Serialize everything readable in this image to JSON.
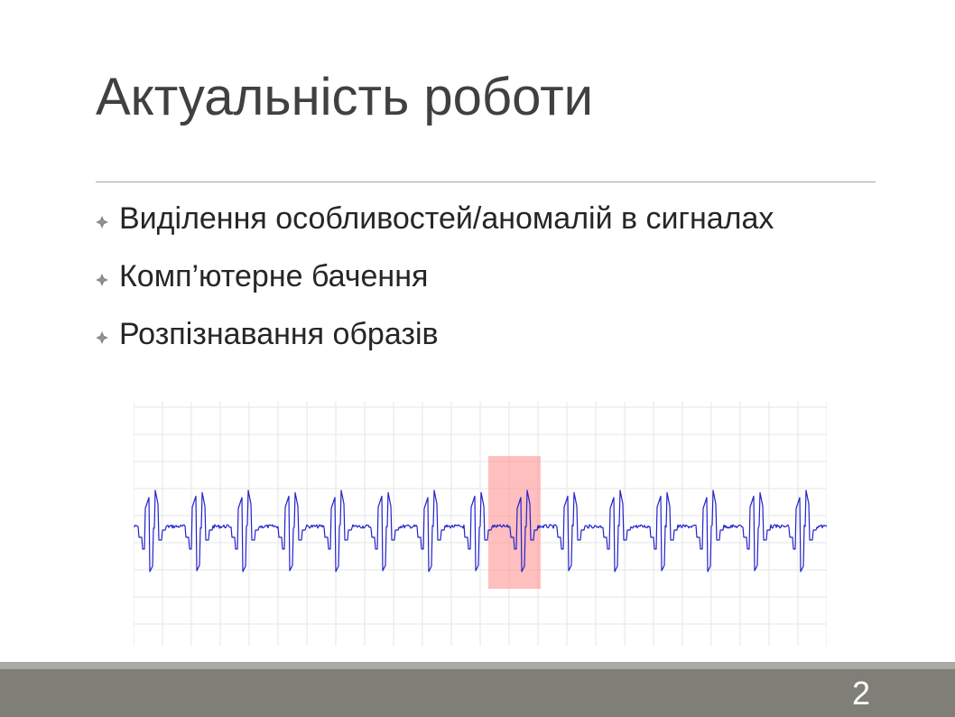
{
  "slide": {
    "title": "Актуальність роботи",
    "bullets": [
      {
        "text": "Виділення особливостей/аномалій в сигналах",
        "icon": "diamond-bullet-icon"
      },
      {
        "text": "Комп’ютерне бачення",
        "icon": "diamond-bullet-icon"
      },
      {
        "text": "Розпізнавання образів",
        "icon": "diamond-bullet-icon"
      }
    ],
    "page_number": "2"
  },
  "colors": {
    "title": "#404040",
    "text": "#262626",
    "rule": "#a6a6a6",
    "bullet": "#8c8c86",
    "signal": "#2222cc",
    "grid": "#e6e6e6",
    "highlight": "#ff8a8a",
    "footer": "#7f7f78",
    "footer_stripe": "#a9aaa4"
  }
}
